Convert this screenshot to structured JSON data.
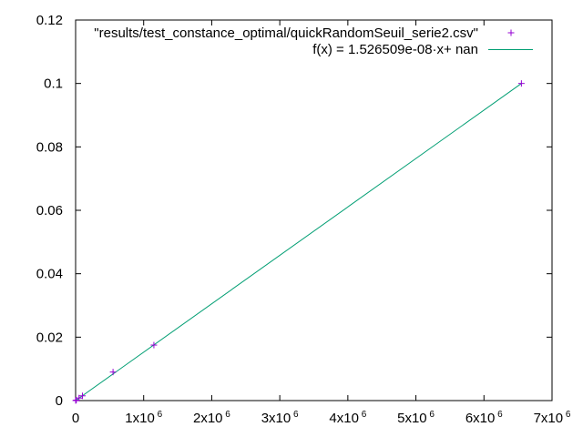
{
  "chart_data": {
    "type": "scatter",
    "xlim": [
      0,
      7000000
    ],
    "ylim": [
      0,
      0.12
    ],
    "x_ticks": [
      {
        "value": 0,
        "base": "0",
        "sup": ""
      },
      {
        "value": 1000000,
        "base": "1x10",
        "sup": "6"
      },
      {
        "value": 2000000,
        "base": "2x10",
        "sup": "6"
      },
      {
        "value": 3000000,
        "base": "3x10",
        "sup": "6"
      },
      {
        "value": 4000000,
        "base": "4x10",
        "sup": "6"
      },
      {
        "value": 5000000,
        "base": "5x10",
        "sup": "6"
      },
      {
        "value": 6000000,
        "base": "6x10",
        "sup": "6"
      },
      {
        "value": 7000000,
        "base": "7x10",
        "sup": "6"
      }
    ],
    "y_ticks": [
      {
        "value": 0,
        "label": "0"
      },
      {
        "value": 0.02,
        "label": "0.02"
      },
      {
        "value": 0.04,
        "label": "0.04"
      },
      {
        "value": 0.06,
        "label": "0.06"
      },
      {
        "value": 0.08,
        "label": "0.08"
      },
      {
        "value": 0.1,
        "label": "0.1"
      },
      {
        "value": 0.12,
        "label": "0.12"
      }
    ],
    "grid": false,
    "legend_position": "top-right",
    "series": [
      {
        "name": "\"results/test_constance_optimal/quickRandomSeuil_serie2.csv\"",
        "kind": "points",
        "marker": "plus",
        "color": "#9400d3",
        "points": [
          {
            "x": 1000,
            "y": 2e-05
          },
          {
            "x": 10000,
            "y": 0.00015
          },
          {
            "x": 50000,
            "y": 0.0008
          },
          {
            "x": 100000,
            "y": 0.0015
          },
          {
            "x": 550000,
            "y": 0.009
          },
          {
            "x": 1150000,
            "y": 0.0175
          },
          {
            "x": 6550000,
            "y": 0.1
          }
        ]
      },
      {
        "name": "f(x) = 1.526509e-08·x+ nan",
        "kind": "line",
        "color": "#009e73",
        "slope": 1.526509e-08,
        "intercept": 0,
        "x_range": [
          0,
          6550000
        ]
      }
    ]
  }
}
